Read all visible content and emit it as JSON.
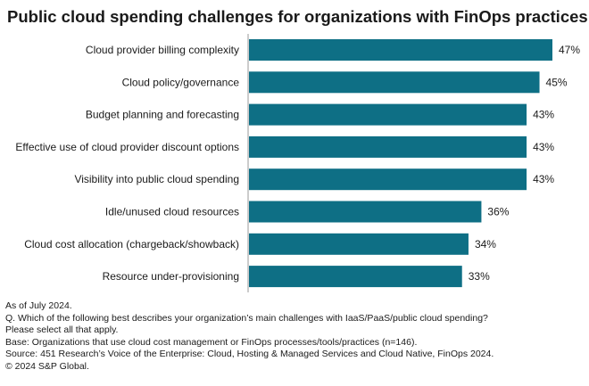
{
  "chart_data": {
    "type": "bar",
    "orientation": "horizontal",
    "title": "Public cloud spending challenges for organizations with FinOps practices",
    "categories": [
      "Cloud provider billing complexity",
      "Cloud policy/governance",
      "Budget planning and forecasting",
      "Effective use of cloud provider discount options",
      "Visibility into public cloud spending",
      "Idle/unused cloud resources",
      "Cloud cost allocation (chargeback/showback)",
      "Resource under-provisioning"
    ],
    "values": [
      47,
      45,
      43,
      43,
      43,
      36,
      34,
      33
    ],
    "value_labels": [
      "47%",
      "45%",
      "43%",
      "43%",
      "43%",
      "36%",
      "34%",
      "33%"
    ],
    "xlim": [
      0,
      47
    ],
    "bar_color": "#0e6f85",
    "grid": false
  },
  "footnotes": [
    "As of July 2024.",
    "Q. Which of the following best describes your organization’s main challenges with IaaS/PaaS/public cloud spending?",
    "Please select all that apply.",
    "Base: Organizations that use cloud cost management or FinOps processes/tools/practices (n=146).",
    "Source: 451 Research’s Voice of the Enterprise: Cloud, Hosting & Managed Services and Cloud Native, FinOps 2024.",
    "© 2024 S&P Global."
  ]
}
